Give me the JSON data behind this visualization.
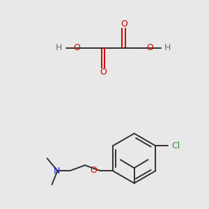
{
  "background_color": "#e8e8e8",
  "fig_width": 3.0,
  "fig_height": 3.0,
  "dpi": 100,
  "colors": {
    "C": "#404040",
    "O": "#cc0000",
    "N": "#1a1acc",
    "Cl": "#3a8c3a",
    "H": "#607070",
    "bond": "#303030"
  }
}
